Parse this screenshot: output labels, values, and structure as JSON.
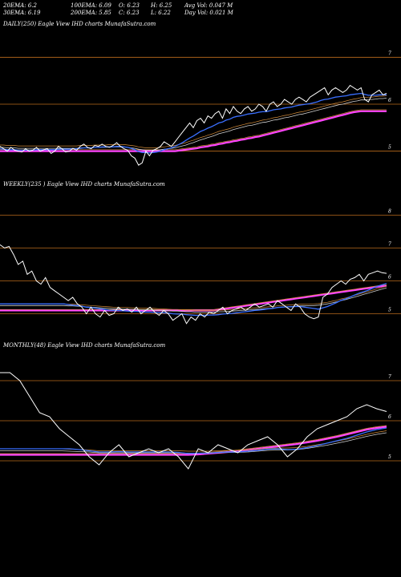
{
  "header": {
    "ema20": "20EMA: 6.2",
    "ema100": "100EMA: 6.09",
    "open": "O: 6.23",
    "high": "H: 6.25",
    "avg_vol": "Avg Vol: 0.047 M",
    "ema30": "30EMA: 6.19",
    "ema200": "200EMA: 5.85",
    "close": "C: 6.23",
    "low": "L: 6.22",
    "day_vol": "Day Vol: 0.021 M"
  },
  "panels": {
    "daily_title": "DAILY(250) Eagle   View  IHD charts MunafaSutra.com",
    "weekly_title": "WEEKLY(235                ) Eagle   View  IHD charts MunafaSutra.com",
    "monthly_title": "MONTHLY(48) Eagle   View  IHD charts MunafaSutra.com"
  },
  "colors": {
    "price": "#ffffff",
    "ema_blue": "#3a6fff",
    "ema_long": "#ff44ff",
    "ema_orange": "#d08a3a",
    "ema_grey": "#d0d0d0",
    "gridline": "#b86a1c"
  },
  "chart_data": [
    {
      "type": "line",
      "name": "daily",
      "yticks": [
        "7",
        "6",
        "5"
      ],
      "ytick_values": [
        7,
        6,
        5
      ],
      "ylim": [
        4.6,
        7.4
      ],
      "price": [
        5.1,
        5.05,
        5.0,
        5.08,
        5.02,
        5.0,
        4.98,
        5.05,
        5.0,
        5.02,
        5.08,
        5.0,
        5.03,
        5.05,
        4.95,
        5.0,
        5.1,
        5.05,
        4.98,
        5.0,
        5.06,
        5.02,
        5.1,
        5.15,
        5.08,
        5.05,
        5.12,
        5.1,
        5.15,
        5.1,
        5.08,
        5.12,
        5.18,
        5.1,
        5.05,
        5.02,
        4.9,
        4.85,
        4.7,
        4.75,
        5.0,
        4.9,
        5.02,
        5.05,
        5.1,
        5.2,
        5.15,
        5.1,
        5.2,
        5.3,
        5.4,
        5.5,
        5.6,
        5.5,
        5.65,
        5.7,
        5.6,
        5.75,
        5.7,
        5.8,
        5.85,
        5.7,
        5.9,
        5.8,
        5.95,
        5.85,
        5.8,
        5.9,
        5.95,
        5.85,
        5.9,
        6.0,
        5.95,
        5.85,
        6.0,
        6.05,
        5.95,
        6.0,
        6.1,
        6.05,
        6.0,
        6.1,
        6.15,
        6.1,
        6.05,
        6.15,
        6.2,
        6.25,
        6.3,
        6.35,
        6.2,
        6.3,
        6.35,
        6.3,
        6.25,
        6.3,
        6.4,
        6.35,
        6.3,
        6.35,
        6.1,
        6.05,
        6.2,
        6.25,
        6.3,
        6.2,
        6.23
      ],
      "ema_short": [
        5.05,
        5.04,
        5.03,
        5.03,
        5.03,
        5.02,
        5.02,
        5.02,
        5.02,
        5.02,
        5.03,
        5.03,
        5.03,
        5.03,
        5.03,
        5.03,
        5.04,
        5.04,
        5.04,
        5.04,
        5.05,
        5.05,
        5.06,
        5.07,
        5.07,
        5.07,
        5.08,
        5.08,
        5.09,
        5.09,
        5.09,
        5.09,
        5.1,
        5.1,
        5.09,
        5.08,
        5.06,
        5.03,
        4.99,
        4.97,
        4.97,
        4.96,
        4.97,
        4.98,
        5.0,
        5.03,
        5.05,
        5.07,
        5.1,
        5.14,
        5.18,
        5.23,
        5.28,
        5.32,
        5.37,
        5.42,
        5.45,
        5.49,
        5.52,
        5.56,
        5.6,
        5.62,
        5.66,
        5.68,
        5.72,
        5.74,
        5.75,
        5.77,
        5.79,
        5.8,
        5.81,
        5.83,
        5.84,
        5.84,
        5.86,
        5.88,
        5.89,
        5.9,
        5.92,
        5.93,
        5.94,
        5.96,
        5.98,
        5.99,
        6.0,
        6.01,
        6.03,
        6.05,
        6.08,
        6.1,
        6.11,
        6.13,
        6.15,
        6.16,
        6.17,
        6.18,
        6.2,
        6.21,
        6.22,
        6.23,
        6.21,
        6.19,
        6.19,
        6.19,
        6.2,
        6.2,
        6.2
      ],
      "ema_mid": [
        5.08,
        5.08,
        5.07,
        5.07,
        5.07,
        5.06,
        5.06,
        5.06,
        5.06,
        5.06,
        5.06,
        5.06,
        5.06,
        5.06,
        5.06,
        5.06,
        5.06,
        5.06,
        5.06,
        5.06,
        5.06,
        5.06,
        5.07,
        5.07,
        5.07,
        5.07,
        5.08,
        5.08,
        5.08,
        5.08,
        5.09,
        5.09,
        5.09,
        5.09,
        5.09,
        5.08,
        5.07,
        5.06,
        5.04,
        5.03,
        5.02,
        5.02,
        5.02,
        5.02,
        5.03,
        5.04,
        5.05,
        5.06,
        5.07,
        5.09,
        5.11,
        5.13,
        5.16,
        5.18,
        5.21,
        5.24,
        5.26,
        5.29,
        5.31,
        5.34,
        5.37,
        5.39,
        5.41,
        5.43,
        5.46,
        5.48,
        5.5,
        5.52,
        5.54,
        5.55,
        5.57,
        5.59,
        5.61,
        5.62,
        5.64,
        5.66,
        5.67,
        5.69,
        5.71,
        5.72,
        5.74,
        5.76,
        5.78,
        5.79,
        5.81,
        5.83,
        5.85,
        5.87,
        5.89,
        5.91,
        5.93,
        5.95,
        5.97,
        5.99,
        6.0,
        6.02,
        6.04,
        6.06,
        6.07,
        6.09,
        6.09,
        6.1,
        6.1,
        6.11,
        6.12,
        6.12,
        6.13
      ],
      "ema_long": [
        5.0,
        5.0,
        5.0,
        5.0,
        5.0,
        5.0,
        5.0,
        5.0,
        5.0,
        5.0,
        5.0,
        5.0,
        5.0,
        5.0,
        5.0,
        5.0,
        5.0,
        5.0,
        5.0,
        5.0,
        5.0,
        5.0,
        5.0,
        5.0,
        5.0,
        5.0,
        5.0,
        5.0,
        5.0,
        5.0,
        5.0,
        5.0,
        5.0,
        5.0,
        5.0,
        5.0,
        5.0,
        5.0,
        5.0,
        5.0,
        5.0,
        5.0,
        5.0,
        5.0,
        5.0,
        5.0,
        5.0,
        5.0,
        5.0,
        5.01,
        5.02,
        5.03,
        5.04,
        5.05,
        5.06,
        5.08,
        5.09,
        5.1,
        5.12,
        5.13,
        5.15,
        5.16,
        5.18,
        5.19,
        5.21,
        5.22,
        5.24,
        5.25,
        5.27,
        5.28,
        5.3,
        5.31,
        5.33,
        5.35,
        5.37,
        5.39,
        5.41,
        5.43,
        5.45,
        5.47,
        5.49,
        5.51,
        5.53,
        5.55,
        5.57,
        5.59,
        5.61,
        5.63,
        5.65,
        5.67,
        5.69,
        5.71,
        5.73,
        5.75,
        5.77,
        5.79,
        5.81,
        5.83,
        5.84,
        5.85,
        5.85,
        5.85,
        5.85,
        5.85,
        5.85,
        5.85,
        5.85
      ]
    },
    {
      "type": "line",
      "name": "weekly",
      "yticks": [
        "8",
        "7",
        "6",
        "5"
      ],
      "ytick_values": [
        8,
        7,
        6,
        5
      ],
      "ylim": [
        4.5,
        8.5
      ],
      "price": [
        7.1,
        7.0,
        7.05,
        6.8,
        6.5,
        6.6,
        6.2,
        6.3,
        6.0,
        5.9,
        6.1,
        5.8,
        5.7,
        5.6,
        5.5,
        5.4,
        5.5,
        5.3,
        5.2,
        5.0,
        5.2,
        5.0,
        4.9,
        5.1,
        4.95,
        5.0,
        5.2,
        5.1,
        5.15,
        5.05,
        5.2,
        5.0,
        5.1,
        5.2,
        5.05,
        4.95,
        5.1,
        5.0,
        4.8,
        4.9,
        5.0,
        4.7,
        4.9,
        4.8,
        5.0,
        4.9,
        5.05,
        5.0,
        5.1,
        5.2,
        5.0,
        5.1,
        5.15,
        5.2,
        5.1,
        5.2,
        5.3,
        5.2,
        5.25,
        5.3,
        5.2,
        5.4,
        5.3,
        5.2,
        5.1,
        5.3,
        5.2,
        5.0,
        4.9,
        4.85,
        4.9,
        5.5,
        5.6,
        5.8,
        5.9,
        6.0,
        5.9,
        6.05,
        6.1,
        6.2,
        6.0,
        6.2,
        6.25,
        6.3,
        6.25,
        6.23
      ],
      "ema_short": [
        5.3,
        5.3,
        5.3,
        5.3,
        5.3,
        5.3,
        5.3,
        5.3,
        5.3,
        5.3,
        5.3,
        5.3,
        5.3,
        5.3,
        5.3,
        5.28,
        5.26,
        5.25,
        5.23,
        5.2,
        5.19,
        5.17,
        5.15,
        5.13,
        5.11,
        5.1,
        5.1,
        5.09,
        5.08,
        5.07,
        5.07,
        5.06,
        5.05,
        5.05,
        5.04,
        5.03,
        5.03,
        5.02,
        5.0,
        4.99,
        4.99,
        4.97,
        4.96,
        4.95,
        4.95,
        4.95,
        4.96,
        4.96,
        4.97,
        4.99,
        5.0,
        5.01,
        5.03,
        5.05,
        5.06,
        5.08,
        5.1,
        5.11,
        5.13,
        5.15,
        5.16,
        5.19,
        5.2,
        5.21,
        5.21,
        5.22,
        5.22,
        5.2,
        5.18,
        5.16,
        5.14,
        5.18,
        5.22,
        5.28,
        5.34,
        5.41,
        5.45,
        5.51,
        5.57,
        5.63,
        5.67,
        5.72,
        5.78,
        5.84,
        5.88,
        5.92
      ],
      "ema_mid": [
        5.25,
        5.25,
        5.25,
        5.25,
        5.25,
        5.25,
        5.25,
        5.25,
        5.25,
        5.25,
        5.25,
        5.25,
        5.25,
        5.25,
        5.25,
        5.24,
        5.24,
        5.23,
        5.22,
        5.21,
        5.2,
        5.19,
        5.18,
        5.17,
        5.16,
        5.15,
        5.15,
        5.14,
        5.14,
        5.13,
        5.13,
        5.12,
        5.12,
        5.12,
        5.11,
        5.1,
        5.1,
        5.09,
        5.08,
        5.08,
        5.07,
        5.06,
        5.06,
        5.05,
        5.05,
        5.05,
        5.05,
        5.05,
        5.06,
        5.06,
        5.07,
        5.08,
        5.09,
        5.1,
        5.11,
        5.12,
        5.13,
        5.14,
        5.15,
        5.16,
        5.17,
        5.19,
        5.2,
        5.21,
        5.22,
        5.23,
        5.24,
        5.24,
        5.25,
        5.25,
        5.26,
        5.28,
        5.3,
        5.33,
        5.36,
        5.4,
        5.43,
        5.47,
        5.51,
        5.55,
        5.59,
        5.63,
        5.67,
        5.71,
        5.75,
        5.79
      ],
      "ema_long": [
        5.1,
        5.1,
        5.1,
        5.1,
        5.1,
        5.1,
        5.1,
        5.1,
        5.1,
        5.1,
        5.1,
        5.1,
        5.1,
        5.1,
        5.1,
        5.1,
        5.1,
        5.1,
        5.1,
        5.1,
        5.1,
        5.1,
        5.1,
        5.1,
        5.1,
        5.1,
        5.1,
        5.1,
        5.1,
        5.1,
        5.1,
        5.1,
        5.1,
        5.1,
        5.1,
        5.1,
        5.1,
        5.1,
        5.1,
        5.1,
        5.1,
        5.1,
        5.1,
        5.1,
        5.1,
        5.1,
        5.1,
        5.1,
        5.12,
        5.14,
        5.16,
        5.18,
        5.2,
        5.22,
        5.24,
        5.26,
        5.28,
        5.3,
        5.32,
        5.34,
        5.36,
        5.38,
        5.4,
        5.42,
        5.44,
        5.46,
        5.48,
        5.5,
        5.52,
        5.54,
        5.56,
        5.58,
        5.6,
        5.62,
        5.64,
        5.66,
        5.68,
        5.7,
        5.72,
        5.74,
        5.76,
        5.78,
        5.8,
        5.82,
        5.84,
        5.85
      ]
    },
    {
      "type": "line",
      "name": "monthly",
      "yticks": [
        "7",
        "6",
        "5"
      ],
      "ytick_values": [
        7,
        6,
        5
      ],
      "ylim": [
        4.5,
        7.5
      ],
      "price": [
        7.2,
        7.2,
        7.0,
        6.6,
        6.2,
        6.1,
        5.8,
        5.6,
        5.4,
        5.1,
        4.9,
        5.2,
        5.4,
        5.1,
        5.2,
        5.3,
        5.2,
        5.3,
        5.1,
        4.8,
        5.3,
        5.2,
        5.4,
        5.3,
        5.2,
        5.4,
        5.5,
        5.6,
        5.4,
        5.1,
        5.3,
        5.6,
        5.8,
        5.9,
        6.0,
        6.1,
        6.3,
        6.4,
        6.3,
        6.23
      ],
      "ema_short": [
        5.3,
        5.3,
        5.3,
        5.3,
        5.3,
        5.3,
        5.3,
        5.3,
        5.28,
        5.25,
        5.22,
        5.22,
        5.23,
        5.22,
        5.22,
        5.22,
        5.22,
        5.22,
        5.21,
        5.18,
        5.19,
        5.19,
        5.21,
        5.22,
        5.22,
        5.24,
        5.26,
        5.29,
        5.3,
        5.28,
        5.29,
        5.33,
        5.38,
        5.44,
        5.5,
        5.56,
        5.64,
        5.72,
        5.78,
        5.82
      ],
      "ema_mid": [
        5.25,
        5.25,
        5.25,
        5.25,
        5.25,
        5.25,
        5.25,
        5.24,
        5.23,
        5.22,
        5.2,
        5.2,
        5.2,
        5.2,
        5.2,
        5.2,
        5.2,
        5.2,
        5.2,
        5.19,
        5.19,
        5.19,
        5.2,
        5.21,
        5.21,
        5.22,
        5.24,
        5.26,
        5.27,
        5.27,
        5.28,
        5.31,
        5.35,
        5.39,
        5.44,
        5.49,
        5.55,
        5.61,
        5.66,
        5.7
      ],
      "ema_long": [
        5.15,
        5.15,
        5.15,
        5.15,
        5.15,
        5.15,
        5.15,
        5.15,
        5.15,
        5.15,
        5.15,
        5.15,
        5.15,
        5.15,
        5.15,
        5.15,
        5.15,
        5.15,
        5.15,
        5.15,
        5.16,
        5.18,
        5.2,
        5.22,
        5.24,
        5.27,
        5.3,
        5.33,
        5.36,
        5.39,
        5.42,
        5.46,
        5.5,
        5.55,
        5.6,
        5.66,
        5.72,
        5.78,
        5.82,
        5.85
      ]
    }
  ]
}
